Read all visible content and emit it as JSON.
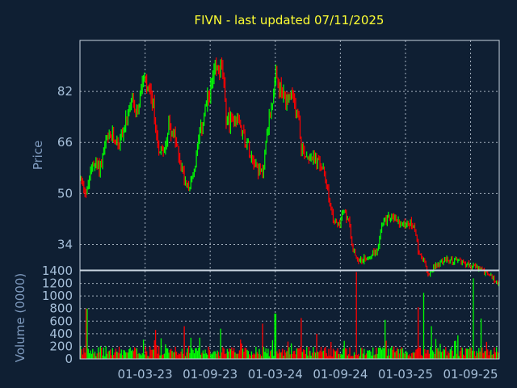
{
  "colors": {
    "background": "#0f1f33",
    "up": "#00ff00",
    "down": "#ff0000",
    "title": "#ffff33",
    "text": "#a6bfd9",
    "frame": "#c9d4e0"
  },
  "chart_data": [
    {
      "type": "candlestick",
      "title": "FIVN - last updated 07/11/2025",
      "ylabel": "Price",
      "xlabel": "",
      "ylim": [
        26,
        98
      ],
      "yticks": [
        34,
        50,
        66,
        82
      ],
      "grid": true,
      "series": [
        {
          "values": [
            [
              2022.5,
              55
            ],
            [
              2022.55,
              50
            ],
            [
              2022.6,
              60
            ],
            [
              2022.65,
              58
            ],
            [
              2022.7,
              66
            ],
            [
              2022.75,
              68
            ],
            [
              2022.8,
              66
            ],
            [
              2022.85,
              72
            ],
            [
              2022.9,
              78
            ],
            [
              2022.95,
              76
            ],
            [
              2022.98,
              86
            ],
            [
              2023.02,
              82
            ],
            [
              2023.06,
              78
            ],
            [
              2023.1,
              65
            ],
            [
              2023.14,
              62
            ],
            [
              2023.18,
              72
            ],
            [
              2023.22,
              68
            ],
            [
              2023.26,
              62
            ],
            [
              2023.3,
              55
            ],
            [
              2023.34,
              52
            ],
            [
              2023.38,
              58
            ],
            [
              2023.42,
              68
            ],
            [
              2023.46,
              76
            ],
            [
              2023.5,
              82
            ],
            [
              2023.54,
              88
            ],
            [
              2023.58,
              90
            ],
            [
              2023.6,
              86
            ],
            [
              2023.62,
              74
            ],
            [
              2023.66,
              72
            ],
            [
              2023.7,
              74
            ],
            [
              2023.74,
              70
            ],
            [
              2023.78,
              66
            ],
            [
              2023.82,
              62
            ],
            [
              2023.86,
              58
            ],
            [
              2023.9,
              56
            ],
            [
              2023.94,
              70
            ],
            [
              2023.98,
              80
            ],
            [
              2024.0,
              86
            ],
            [
              2024.04,
              82
            ],
            [
              2024.08,
              78
            ],
            [
              2024.12,
              80
            ],
            [
              2024.16,
              76
            ],
            [
              2024.18,
              74
            ],
            [
              2024.2,
              64
            ],
            [
              2024.24,
              62
            ],
            [
              2024.28,
              62
            ],
            [
              2024.32,
              60
            ],
            [
              2024.36,
              58
            ],
            [
              2024.4,
              52
            ],
            [
              2024.44,
              42
            ],
            [
              2024.48,
              40
            ],
            [
              2024.52,
              44
            ],
            [
              2024.56,
              42
            ],
            [
              2024.6,
              32
            ],
            [
              2024.62,
              30
            ],
            [
              2024.66,
              29
            ],
            [
              2024.7,
              30
            ],
            [
              2024.74,
              31
            ],
            [
              2024.78,
              32
            ],
            [
              2024.82,
              40
            ],
            [
              2024.86,
              42
            ],
            [
              2024.9,
              43
            ],
            [
              2024.94,
              41
            ],
            [
              2024.98,
              40
            ],
            [
              2025.02,
              41
            ],
            [
              2025.06,
              40
            ],
            [
              2025.1,
              32
            ],
            [
              2025.14,
              29
            ],
            [
              2025.18,
              24
            ],
            [
              2025.22,
              27
            ],
            [
              2025.26,
              28
            ],
            [
              2025.3,
              29
            ],
            [
              2025.34,
              29
            ],
            [
              2025.38,
              29
            ],
            [
              2025.42,
              29
            ],
            [
              2025.46,
              28
            ],
            [
              2025.5,
              27
            ],
            [
              2025.54,
              27
            ],
            [
              2025.58,
              26
            ],
            [
              2025.62,
              25
            ],
            [
              2025.66,
              24
            ],
            [
              2025.7,
              22
            ]
          ]
        }
      ]
    },
    {
      "type": "bar",
      "ylabel": "Volume (0000)",
      "xlabel": "",
      "ylim": [
        0,
        1400
      ],
      "yticks": [
        0,
        200,
        400,
        600,
        800,
        1000,
        1200,
        1400
      ],
      "ytick_labels": [
        "0",
        "200",
        "400",
        "600",
        "800",
        "1000",
        "1200",
        "1400"
      ],
      "xticks": [
        "01-03-23",
        "01-09-23",
        "01-03-24",
        "01-09-24",
        "01-03-25",
        "01-09-25"
      ],
      "xtick_positions": [
        2023.0,
        2023.5,
        2024.0,
        2024.5,
        2025.0,
        2025.5
      ],
      "xlim": [
        2022.5,
        2025.72
      ],
      "grid": true,
      "spikes": [
        [
          2022.55,
          800
        ],
        [
          2023.08,
          460
        ],
        [
          2023.3,
          520
        ],
        [
          2023.58,
          480
        ],
        [
          2023.9,
          560
        ],
        [
          2024.0,
          720
        ],
        [
          2024.2,
          650
        ],
        [
          2024.32,
          400
        ],
        [
          2024.62,
          1380
        ],
        [
          2024.84,
          620
        ],
        [
          2025.1,
          820
        ],
        [
          2025.14,
          1050
        ],
        [
          2025.2,
          520
        ],
        [
          2025.52,
          1280
        ],
        [
          2025.58,
          640
        ]
      ]
    }
  ]
}
